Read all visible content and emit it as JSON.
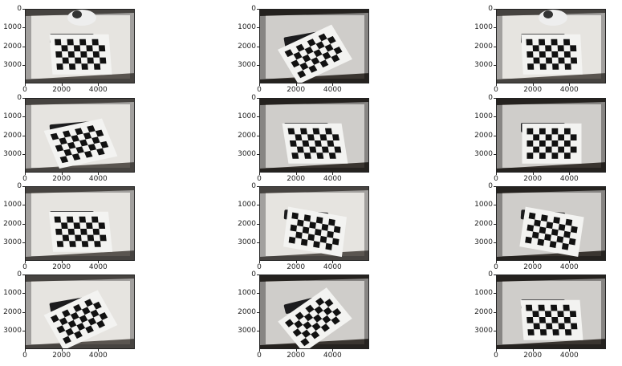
{
  "figure": {
    "description_free": true,
    "rows": 4,
    "cols": 3
  },
  "colors": {
    "desk": "#e6e4e0",
    "paper": "#f3f3f1",
    "square": "#111111",
    "keyboard": "#1c1c1e",
    "floor": "#2a2520"
  },
  "chart_data": [
    {
      "type": "image",
      "panel": 1,
      "xticks": [
        "0",
        "2000",
        "4000"
      ],
      "yticks": [
        "0",
        "1000",
        "2000",
        "3000"
      ],
      "xlim": [
        0,
        6000
      ],
      "ylim": [
        4000,
        0
      ],
      "board_angle_deg": 0,
      "board_tilt": 0.15,
      "lighting": "bright",
      "cat": true
    },
    {
      "type": "image",
      "panel": 2,
      "xticks": [
        "0",
        "2000",
        "4000"
      ],
      "yticks": [
        "0",
        "1000",
        "2000",
        "3000"
      ],
      "xlim": [
        0,
        6000
      ],
      "ylim": [
        4000,
        0
      ],
      "board_angle_deg": -25,
      "board_tilt": 0.2,
      "lighting": "dim",
      "cat": false
    },
    {
      "type": "image",
      "panel": 3,
      "xticks": [
        "0",
        "2000",
        "4000"
      ],
      "yticks": [
        "0",
        "1000",
        "2000",
        "3000"
      ],
      "xlim": [
        0,
        6000
      ],
      "ylim": [
        4000,
        0
      ],
      "board_angle_deg": 0,
      "board_tilt": 0.1,
      "lighting": "bright",
      "cat": true
    },
    {
      "type": "image",
      "panel": 4,
      "xticks": [
        "0",
        "2000",
        "4000"
      ],
      "yticks": [
        "0",
        "1000",
        "2000",
        "3000"
      ],
      "xlim": [
        0,
        6000
      ],
      "ylim": [
        4000,
        0
      ],
      "board_angle_deg": -12,
      "board_tilt": 0.35,
      "lighting": "bright",
      "cat": false
    },
    {
      "type": "image",
      "panel": 5,
      "xticks": [
        "0",
        "2000",
        "4000"
      ],
      "yticks": [
        "0",
        "1000",
        "2000",
        "3000"
      ],
      "xlim": [
        0,
        6000
      ],
      "ylim": [
        4000,
        0
      ],
      "board_angle_deg": 0,
      "board_tilt": 0.3,
      "lighting": "dim",
      "cat": false
    },
    {
      "type": "image",
      "panel": 6,
      "xticks": [
        "0",
        "2000",
        "4000"
      ],
      "yticks": [
        "0",
        "1000",
        "2000",
        "3000"
      ],
      "xlim": [
        0,
        6000
      ],
      "ylim": [
        4000,
        0
      ],
      "board_angle_deg": 0,
      "board_tilt": 0,
      "lighting": "dim",
      "cat": false
    },
    {
      "type": "image",
      "panel": 7,
      "xticks": [
        "0",
        "2000",
        "4000"
      ],
      "yticks": [
        "0",
        "1000",
        "2000",
        "3000"
      ],
      "xlim": [
        0,
        6000
      ],
      "ylim": [
        4000,
        0
      ],
      "board_angle_deg": 0,
      "board_tilt": 0.2,
      "lighting": "bright",
      "cat": false
    },
    {
      "type": "image",
      "panel": 8,
      "xticks": [
        "0",
        "2000",
        "4000"
      ],
      "yticks": [
        "0",
        "1000",
        "2000",
        "3000"
      ],
      "xlim": [
        0,
        6000
      ],
      "ylim": [
        4000,
        0
      ],
      "board_angle_deg": 10,
      "board_tilt": 0.1,
      "lighting": "bright",
      "cat": false
    },
    {
      "type": "image",
      "panel": 9,
      "xticks": [
        "0",
        "2000",
        "4000"
      ],
      "yticks": [
        "0",
        "1000",
        "2000",
        "3000"
      ],
      "xlim": [
        0,
        6000
      ],
      "ylim": [
        4000,
        0
      ],
      "board_angle_deg": 10,
      "board_tilt": 0.05,
      "lighting": "dim",
      "cat": false
    },
    {
      "type": "image",
      "panel": 10,
      "xticks": [
        "0",
        "2000",
        "4000"
      ],
      "yticks": [
        "0",
        "1000",
        "2000",
        "3000"
      ],
      "xlim": [
        0,
        6000
      ],
      "ylim": [
        4000,
        0
      ],
      "board_angle_deg": -25,
      "board_tilt": 0.15,
      "lighting": "bright",
      "cat": false
    },
    {
      "type": "image",
      "panel": 11,
      "xticks": [
        "0",
        "2000",
        "4000"
      ],
      "yticks": [
        "0",
        "1000",
        "2000",
        "3000"
      ],
      "xlim": [
        0,
        6000
      ],
      "ylim": [
        4000,
        0
      ],
      "board_angle_deg": -35,
      "board_tilt": 0.15,
      "lighting": "dim",
      "cat": false
    },
    {
      "type": "image",
      "panel": 12,
      "xticks": [
        "0",
        "2000",
        "4000"
      ],
      "yticks": [
        "0",
        "1000",
        "2000",
        "3000"
      ],
      "xlim": [
        0,
        6000
      ],
      "ylim": [
        4000,
        0
      ],
      "board_angle_deg": 0,
      "board_tilt": 0.15,
      "lighting": "dim",
      "cat": false
    }
  ]
}
